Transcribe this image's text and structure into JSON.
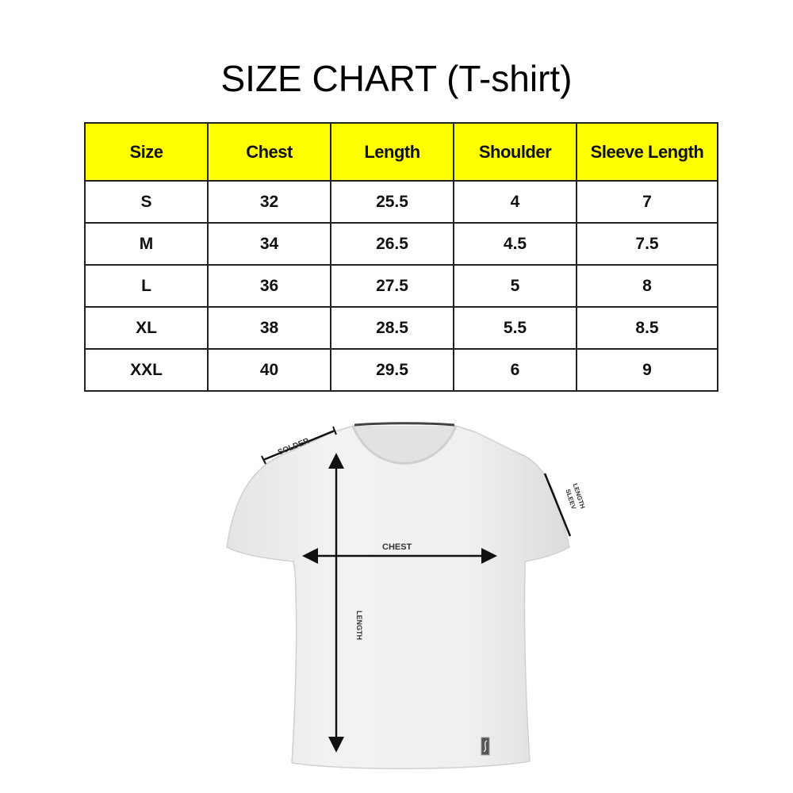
{
  "title": "SIZE CHART (T-shirt)",
  "table": {
    "headers": [
      "Size",
      "Chest",
      "Length",
      "Shoulder",
      "Sleeve Length"
    ],
    "header_bg": "#ffff00",
    "rows": [
      [
        "S",
        "32",
        "25.5",
        "4",
        "7"
      ],
      [
        "M",
        "34",
        "26.5",
        "4.5",
        "7.5"
      ],
      [
        "L",
        "36",
        "27.5",
        "5",
        "8"
      ],
      [
        "XL",
        "38",
        "28.5",
        "5.5",
        "8.5"
      ],
      [
        "XXL",
        "40",
        "29.5",
        "6",
        "9"
      ]
    ]
  },
  "diagram": {
    "labels": {
      "shoulder": "SOLDER",
      "chest": "CHEST",
      "length": "LENGTH",
      "sleeve_line1": "SLEEV",
      "sleeve_line2": "LENGTH"
    }
  }
}
